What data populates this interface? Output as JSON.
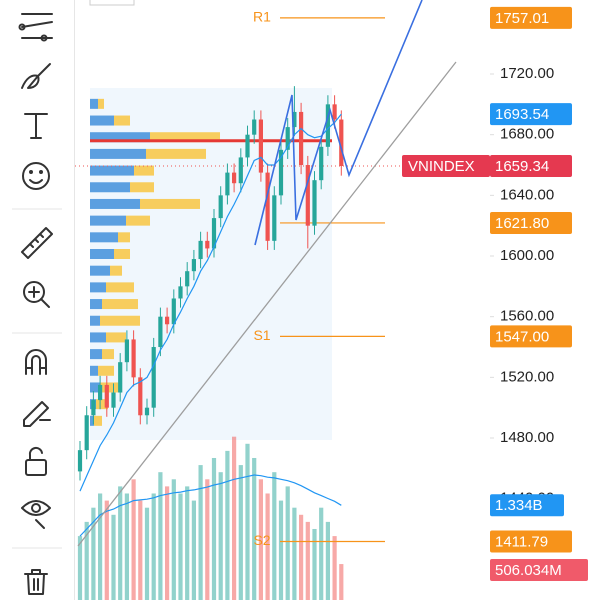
{
  "chart_data": {
    "type": "candlestick",
    "symbol": "VNINDEX",
    "ylim": [
      1373.2,
      1768.8
    ],
    "yticks": [
      {
        "value": 1440,
        "label": "1440.00"
      },
      {
        "value": 1480,
        "label": "1480.00"
      },
      {
        "value": 1520,
        "label": "1520.00"
      },
      {
        "value": 1560,
        "label": "1560.00"
      },
      {
        "value": 1600,
        "label": "1600.00"
      },
      {
        "value": 1640,
        "label": "1640.00"
      },
      {
        "value": 1680,
        "label": "1680.00"
      },
      {
        "value": 1720,
        "label": "1720.00"
      }
    ],
    "up_color": "#26a69a",
    "down_color": "#ef5350",
    "open": [
      1458,
      1472,
      1495,
      1505,
      1515,
      1500,
      1510,
      1530,
      1545,
      1520,
      1495,
      1500,
      1540,
      1560,
      1555,
      1572,
      1580,
      1590,
      1598,
      1610,
      1605,
      1625,
      1640,
      1655,
      1648,
      1665,
      1680,
      1690,
      1655,
      1610,
      1640,
      1670,
      1685,
      1695,
      1660,
      1620,
      1650,
      1672,
      1700,
      1690
    ],
    "high": [
      1478,
      1501,
      1511,
      1521,
      1521,
      1516,
      1536,
      1551,
      1551,
      1526,
      1506,
      1546,
      1566,
      1566,
      1578,
      1586,
      1596,
      1604,
      1616,
      1616,
      1631,
      1646,
      1661,
      1661,
      1671,
      1686,
      1696,
      1696,
      1661,
      1646,
      1676,
      1691,
      1712,
      1701,
      1666,
      1656,
      1678,
      1706,
      1706,
      1696
    ],
    "low": [
      1452,
      1466,
      1489,
      1499,
      1494,
      1494,
      1504,
      1524,
      1514,
      1489,
      1489,
      1494,
      1534,
      1549,
      1549,
      1566,
      1574,
      1584,
      1592,
      1599,
      1599,
      1619,
      1634,
      1642,
      1642,
      1659,
      1674,
      1649,
      1604,
      1604,
      1634,
      1664,
      1679,
      1654,
      1605,
      1614,
      1644,
      1666,
      1684,
      1653
    ],
    "close": [
      1472,
      1495,
      1505,
      1515,
      1500,
      1510,
      1530,
      1545,
      1520,
      1495,
      1500,
      1540,
      1560,
      1555,
      1572,
      1580,
      1590,
      1598,
      1610,
      1605,
      1625,
      1640,
      1655,
      1648,
      1665,
      1680,
      1690,
      1655,
      1610,
      1640,
      1670,
      1685,
      1695,
      1660,
      1620,
      1650,
      1672,
      1700,
      1690,
      1659.34
    ],
    "ma": {
      "color": "#2196f3",
      "values": [
        1445,
        1455,
        1465,
        1475,
        1482,
        1490,
        1500,
        1510,
        1515,
        1517,
        1520,
        1528,
        1538,
        1545,
        1555,
        1563,
        1572,
        1580,
        1590,
        1597,
        1606,
        1616,
        1626,
        1634,
        1643,
        1653,
        1663,
        1665,
        1660,
        1660,
        1665,
        1672,
        1680,
        1684,
        1680,
        1678,
        1679,
        1684,
        1688,
        1693.54
      ]
    },
    "y2lim": [
      0,
      8450000000
    ],
    "volume": {
      "values": [
        900000000,
        1100000000,
        1300000000,
        1500000000,
        1400000000,
        1200000000,
        1600000000,
        1500000000,
        1700000000,
        1400000000,
        1300000000,
        1500000000,
        1800000000,
        1600000000,
        1700000000,
        1500000000,
        1600000000,
        1400000000,
        1900000000,
        1700000000,
        2000000000,
        1800000000,
        2100000000,
        2300000000,
        1900000000,
        2200000000,
        2000000000,
        1700000000,
        1500000000,
        1800000000,
        1400000000,
        1600000000,
        1300000000,
        1200000000,
        1100000000,
        1000000000,
        1300000000,
        1100000000,
        900000000,
        506034000
      ],
      "last_label": "506.034M"
    },
    "volume_ma": {
      "color": "#2196f3",
      "values": [
        900000000,
        1000000000,
        1100000000,
        1200000000,
        1250000000,
        1280000000,
        1330000000,
        1360000000,
        1400000000,
        1410000000,
        1420000000,
        1440000000,
        1470000000,
        1490000000,
        1510000000,
        1520000000,
        1540000000,
        1550000000,
        1570000000,
        1590000000,
        1620000000,
        1640000000,
        1670000000,
        1700000000,
        1720000000,
        1740000000,
        1760000000,
        1750000000,
        1730000000,
        1720000000,
        1700000000,
        1680000000,
        1650000000,
        1610000000,
        1560000000,
        1510000000,
        1470000000,
        1430000000,
        1390000000,
        1334000000
      ],
      "last_label": "1.334B"
    },
    "volume_profile": {
      "prices": [
        1700,
        1689,
        1678,
        1667,
        1656,
        1645,
        1634,
        1623,
        1612,
        1601,
        1590,
        1579,
        1568,
        1557,
        1546,
        1535,
        1524,
        1513,
        1502,
        1491
      ],
      "buy": [
        4,
        12,
        30,
        28,
        22,
        20,
        25,
        18,
        14,
        12,
        10,
        8,
        6,
        5,
        8,
        6,
        4,
        5,
        3,
        2
      ],
      "sell": [
        3,
        8,
        35,
        30,
        10,
        12,
        30,
        12,
        6,
        8,
        6,
        14,
        18,
        20,
        10,
        6,
        8,
        10,
        6,
        4
      ],
      "buy_color": "#5b9fe0",
      "sell_color": "#f7cd5e"
    },
    "levels": [
      {
        "name": "R1",
        "value": 1757.01,
        "color": "#f7931a"
      },
      {
        "value": 1676,
        "color": "#e53935"
      },
      {
        "value": 1621.8,
        "label": "1621.80",
        "color": "#f7931a"
      },
      {
        "name": "S1",
        "value": 1547,
        "label": "1547.00",
        "color": "#f7931a"
      },
      {
        "name": "S2",
        "value": 1411.79,
        "color": "#f7931a"
      }
    ]
  }
}
